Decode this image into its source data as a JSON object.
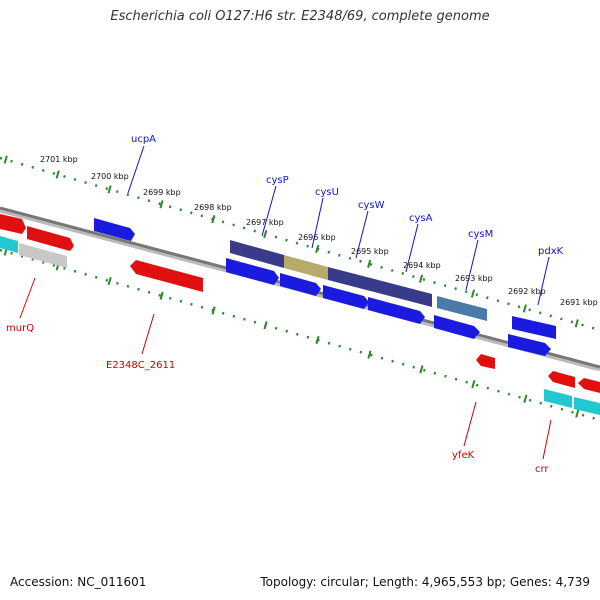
{
  "title": "Escherichia coli O127:H6 str. E2348/69, complete genome",
  "footer": {
    "accession": "Accession: NC_011601",
    "summary": "Topology: circular; Length: 4,965,553 bp; Genes: 4,739"
  },
  "colors": {
    "blue_gene": "#1b1be0",
    "red_gene": "#e01010",
    "cyan_gene": "#22c8d0",
    "grey_gene": "#c8c8c8",
    "purple_operon": "#3a3a8a",
    "tan_operon": "#b8aa6a",
    "steel_operon": "#4a7aaa",
    "tick_green": "#2a8a2a",
    "axis_grey": "#888888"
  },
  "kbp_labels": [
    "2701 kbp",
    "2700 kbp",
    "2699 kbp",
    "2698 kbp",
    "2697 kbp",
    "2696 kbp",
    "2695 kbp",
    "2694 kbp",
    "2693 kbp",
    "2692 kbp",
    "2691 kbp"
  ],
  "top_gene_labels": [
    "ucpA",
    "cysP",
    "cysU",
    "cysW",
    "cysA",
    "cysM",
    "pdxK"
  ],
  "bottom_gene_labels": [
    "murQ",
    "E2348C_2611",
    "yfeK",
    "crr"
  ]
}
